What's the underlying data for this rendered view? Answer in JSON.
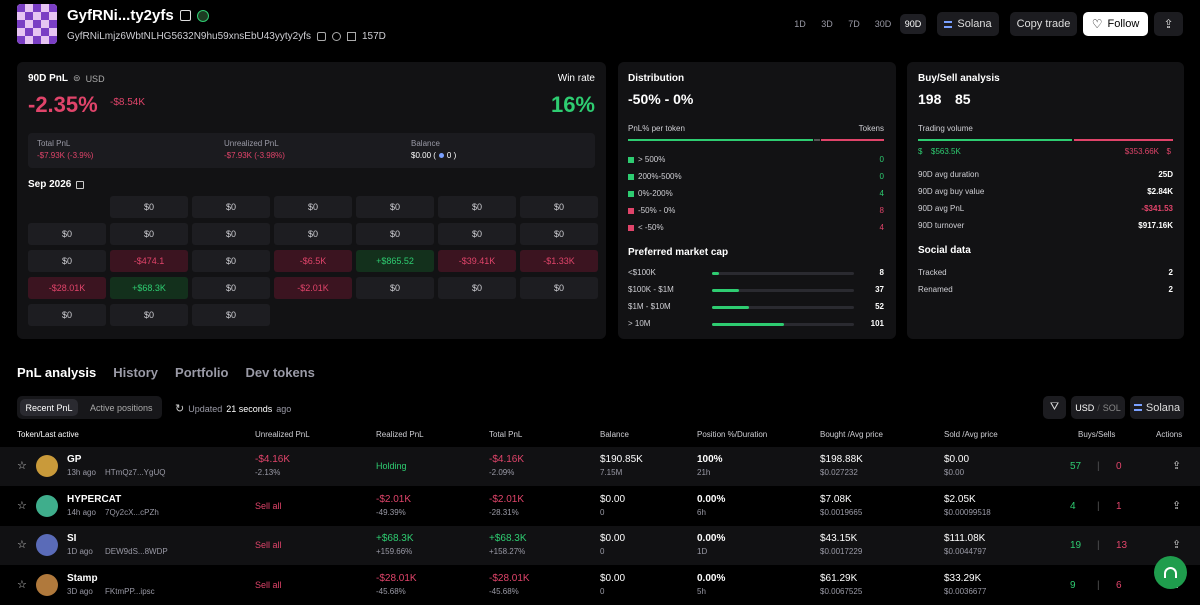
{
  "header": {
    "name": "GyfRNi...ty2yfs",
    "address": "GyfRNiLmjz6WbtNLHG5632N9hu59xnsEbU43yyty2yfs",
    "age": "157D",
    "periods": [
      "1D",
      "7D",
      "30D",
      "90D"
    ],
    "period_1d": "1D",
    "period_3d": "3D",
    "period_7d": "7D",
    "period_30d": "30D",
    "period_90d": "90D",
    "chain": "Solana",
    "copy_trade": "Copy trade",
    "follow": "Follow"
  },
  "pnl_card": {
    "title": "90D PnL",
    "currency": "USD",
    "pnl_pct": "-2.35%",
    "pnl_usd": "-$8.54K",
    "win_rate_label": "Win rate",
    "win_rate": "16%",
    "total_pnl_label": "Total PnL",
    "total_pnl": "-$7.93K (-3.9%)",
    "unrealized_label": "Unrealized PnL",
    "unrealized": "-$7.93K (-3.98%)",
    "balance_label": "Balance",
    "balance": "$0.00 (",
    "balance_sol": "0 )",
    "month": "Sep 2026",
    "calendar": [
      [
        "",
        "$0",
        "$0",
        "$0",
        "$0",
        "$0",
        "$0"
      ],
      [
        "$0",
        "$0",
        "$0",
        "$0",
        "$0",
        "$0",
        "$0"
      ],
      [
        "$0",
        "-$474.1",
        "$0",
        "-$6.5K",
        "+$865.52",
        "-$39.41K",
        "-$1.33K"
      ],
      [
        "-$28.01K",
        "+$68.3K",
        "$0",
        "-$2.01K",
        "$0",
        "$0",
        "$0"
      ],
      [
        "$0",
        "$0",
        "$0",
        "",
        "",
        "",
        ""
      ]
    ]
  },
  "distribution": {
    "title": "Distribution",
    "range": "-50% - 0%",
    "col1": "PnL% per token",
    "col2": "Tokens",
    "rows": [
      {
        "label": "> 500%",
        "value": "0",
        "color": "#2ecc71"
      },
      {
        "label": "200%-500%",
        "value": "0",
        "color": "#2ecc71"
      },
      {
        "label": "0%-200%",
        "value": "4",
        "color": "#2ecc71"
      },
      {
        "label": "-50% - 0%",
        "value": "8",
        "color": "#e0446a"
      },
      {
        "label": "< -50%",
        "value": "4",
        "color": "#e0446a"
      }
    ],
    "mcap_title": "Preferred market cap",
    "mcap": [
      {
        "label": "<$100K",
        "value": "8",
        "fill": 0.05
      },
      {
        "label": "$100K - $1M",
        "value": "37",
        "fill": 0.19
      },
      {
        "label": "$1M - $10M",
        "value": "52",
        "fill": 0.26
      },
      {
        "label": "> 10M",
        "value": "101",
        "fill": 0.51
      }
    ]
  },
  "buysell": {
    "title": "Buy/Sell analysis",
    "buys": "198",
    "sells": "85",
    "volume_label": "Trading volume",
    "buy_vol": "$563.5K",
    "sell_vol": "$353.66K",
    "buy_share": 0.61,
    "stats": [
      {
        "label": "90D avg duration",
        "value": "25D",
        "cls": "w"
      },
      {
        "label": "90D avg buy value",
        "value": "$2.84K",
        "cls": "w"
      },
      {
        "label": "90D avg PnL",
        "value": "-$341.53",
        "cls": "r"
      },
      {
        "label": "90D turnover",
        "value": "$917.16K",
        "cls": "w"
      }
    ],
    "social_title": "Social data",
    "social": [
      {
        "label": "Tracked",
        "value": "2"
      },
      {
        "label": "Renamed",
        "value": "2"
      }
    ]
  },
  "tabs": [
    "PnL analysis",
    "History",
    "Portfolio",
    "Dev tokens"
  ],
  "subtabs": [
    "Recent PnL",
    "Active positions"
  ],
  "updated_prefix": "Updated",
  "updated_time": "21 seconds",
  "updated_suffix": "ago",
  "toggle_usd": "USD",
  "toggle_sol": "SOL",
  "table": {
    "headers": [
      "Token/Last active",
      "Unrealized PnL",
      "Realized PnL",
      "Total PnL",
      "Balance",
      "Position %/Duration",
      "Bought  /Avg price",
      "Sold  /Avg price",
      "Buys/Sells",
      "Actions"
    ],
    "rows": [
      {
        "name": "GP",
        "age": "13h ago",
        "addr": "HTmQz7...YgUQ",
        "un1": "-$4.16K",
        "un2": "-2.13%",
        "uncls": "r",
        "rl1": "Holding",
        "rl2": "",
        "rlcls": "g",
        "t1": "-$4.16K",
        "t2": "-2.09%",
        "tcls": "r",
        "b1": "$190.85K",
        "b2": "7.15M",
        "p1": "100%",
        "p2": "21h",
        "bo1": "$198.88K",
        "bo2": "$0.027232",
        "s1": "$0.00",
        "s2": "$0.00",
        "buys": "57",
        "sells": "0",
        "avatar": "#c99a3a"
      },
      {
        "name": "HYPERCAT",
        "age": "14h ago",
        "addr": "7Qy2cX...cPZh",
        "un1": "Sell all",
        "un2": "",
        "uncls": "r",
        "rl1": "-$2.01K",
        "rl2": "-49.39%",
        "rlcls": "r",
        "t1": "-$2.01K",
        "t2": "-28.31%",
        "tcls": "r",
        "b1": "$0.00",
        "b2": "0",
        "p1": "0.00%",
        "p2": "6h",
        "bo1": "$7.08K",
        "bo2": "$0.0019665",
        "s1": "$2.05K",
        "s2": "$0.00099518",
        "buys": "4",
        "sells": "1",
        "avatar": "#3fae8c"
      },
      {
        "name": "SI",
        "age": "1D ago",
        "addr": "DEW9dS...8WDP",
        "un1": "Sell all",
        "un2": "",
        "uncls": "r",
        "rl1": "+$68.3K",
        "rl2": "+159.66%",
        "rlcls": "g",
        "t1": "+$68.3K",
        "t2": "+158.27%",
        "tcls": "g",
        "b1": "$0.00",
        "b2": "0",
        "p1": "0.00%",
        "p2": "1D",
        "bo1": "$43.15K",
        "bo2": "$0.0017229",
        "s1": "$111.08K",
        "s2": "$0.0044797",
        "buys": "19",
        "sells": "13",
        "avatar": "#5a6bb8"
      },
      {
        "name": "Stamp",
        "age": "3D ago",
        "addr": "FKtmPP...ipsc",
        "un1": "Sell all",
        "un2": "",
        "uncls": "r",
        "rl1": "-$28.01K",
        "rl2": "-45.68%",
        "rlcls": "r",
        "t1": "-$28.01K",
        "t2": "-45.68%",
        "tcls": "r",
        "b1": "$0.00",
        "b2": "0",
        "p1": "0.00%",
        "p2": "5h",
        "bo1": "$61.29K",
        "bo2": "$0.0067525",
        "s1": "$33.29K",
        "s2": "$0.0036677",
        "buys": "9",
        "sells": "6",
        "avatar": "#b0793c"
      }
    ]
  },
  "colors": {
    "green": "#2ecc71",
    "red": "#e0446a",
    "bg": "#000000",
    "card": "#121214"
  }
}
